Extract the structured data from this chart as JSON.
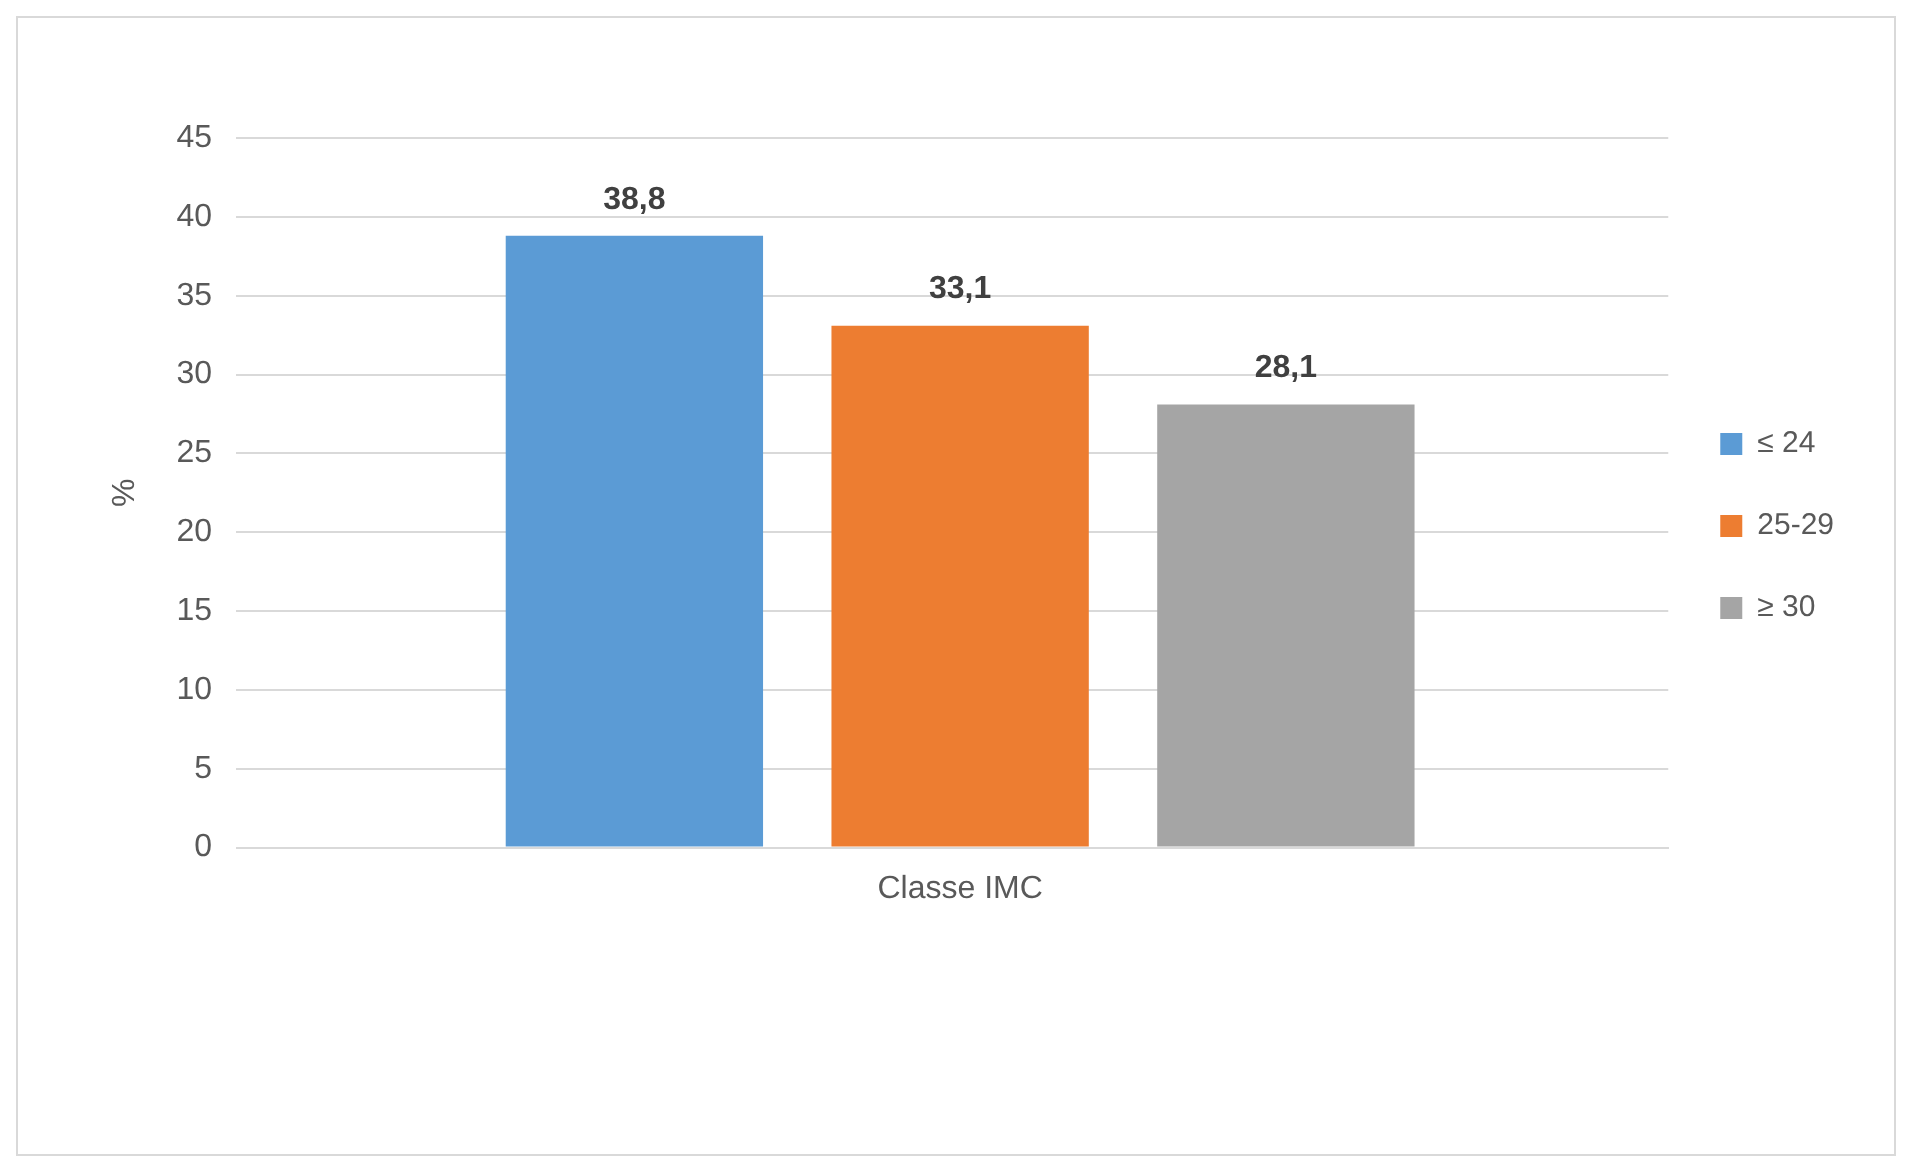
{
  "chart_data": {
    "type": "bar",
    "ylabel": "%",
    "categories": [
      "Classe IMC"
    ],
    "series": [
      {
        "name": "≤ 24",
        "color": "#5b9bd5",
        "values": [
          38.8
        ],
        "value_labels": [
          "38,8"
        ]
      },
      {
        "name": "25-29",
        "color": "#ed7d31",
        "values": [
          33.1
        ],
        "value_labels": [
          "33,1"
        ]
      },
      {
        "name": "≥ 30",
        "color": "#a5a5a5",
        "values": [
          28.1
        ],
        "value_labels": [
          "28,1"
        ]
      }
    ],
    "ylim": [
      0,
      45
    ],
    "yticks": [
      0,
      5,
      10,
      15,
      20,
      25,
      30,
      35,
      40,
      45
    ],
    "grid": "y",
    "legend": "right"
  }
}
